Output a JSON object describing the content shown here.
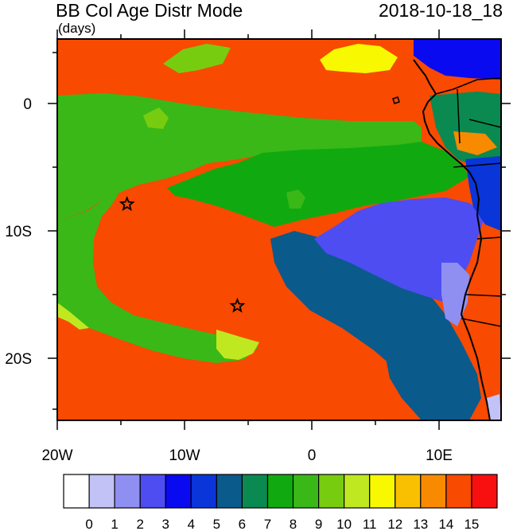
{
  "header": {
    "title": "BB Col Age Distr Mode",
    "units": "(days)",
    "timestamp": "2018-10-18_18"
  },
  "axes": {
    "x_ticks": [
      {
        "label": "20W",
        "value": -20
      },
      {
        "label": "10W",
        "value": -10
      },
      {
        "label": "0",
        "value": 0
      },
      {
        "label": "10E",
        "value": 10
      }
    ],
    "y_ticks": [
      {
        "label": "0",
        "value": 0
      },
      {
        "label": "10S",
        "value": -10
      },
      {
        "label": "20S",
        "value": -20
      }
    ],
    "lon_range": [
      -20,
      15
    ],
    "lat_range": [
      -25,
      5
    ]
  },
  "markers": [
    {
      "name": "star-marker",
      "lon": -14.5,
      "lat": -8
    },
    {
      "name": "star-marker",
      "lon": -5.8,
      "lat": -16
    }
  ],
  "colorbar": {
    "labels": [
      "0",
      "1",
      "2",
      "3",
      "4",
      "5",
      "6",
      "7",
      "8",
      "9",
      "10",
      "11",
      "12",
      "13",
      "14",
      "15"
    ],
    "colors": [
      "#ffffff",
      "#c2c2f6",
      "#8f8ff2",
      "#4d4df2",
      "#0a0af0",
      "#0a35d9",
      "#0a5a8c",
      "#0a8a50",
      "#10aa10",
      "#3ab818",
      "#78cc10",
      "#c0e820",
      "#f8f800",
      "#f8c000",
      "#f88a00",
      "#f84a00",
      "#f81010"
    ]
  },
  "map": {
    "ocean_color": "#f84a00",
    "coast_color": "#000000"
  }
}
